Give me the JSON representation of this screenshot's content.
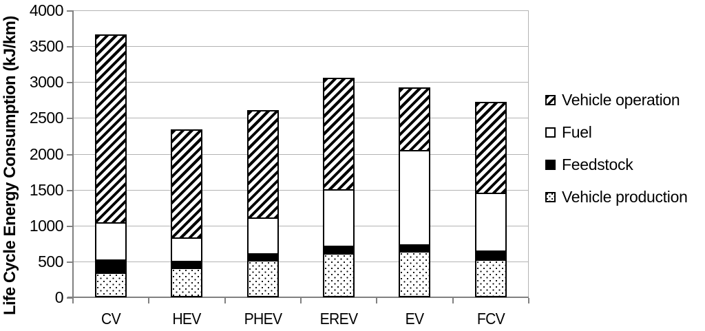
{
  "chart_data": {
    "type": "bar",
    "stacked": true,
    "title": "",
    "xlabel": "",
    "ylabel": "Life Cycle Energy Consumption (kJ/km)",
    "ylim": [
      0,
      4000
    ],
    "ytick_step": 500,
    "ytick_labels": [
      "0",
      "500",
      "1000",
      "1500",
      "2000",
      "2500",
      "3000",
      "3500",
      "4000"
    ],
    "categories": [
      "CV",
      "HEV",
      "PHEV",
      "EREV",
      "EV",
      "FCV"
    ],
    "series": [
      {
        "name": "Vehicle production",
        "pattern": "dots",
        "values": [
          350,
          410,
          520,
          610,
          640,
          530
        ]
      },
      {
        "name": "Feedstock",
        "pattern": "black",
        "values": [
          180,
          100,
          95,
          110,
          100,
          120
        ]
      },
      {
        "name": "Fuel",
        "pattern": "white",
        "values": [
          520,
          330,
          495,
          790,
          1310,
          810
        ]
      },
      {
        "name": "Vehicle operation",
        "pattern": "hatch",
        "values": [
          2610,
          1500,
          1500,
          1550,
          880,
          1260
        ]
      }
    ],
    "stack_totals": [
      3660,
      2340,
      2610,
      3060,
      2930,
      2720
    ],
    "legend_position": "right",
    "legend": [
      {
        "label": "Vehicle operation",
        "pattern": "hatch",
        "swatch_icon": "diagonal-hatch-swatch-icon"
      },
      {
        "label": "Fuel",
        "pattern": "white",
        "swatch_icon": "white-swatch-icon"
      },
      {
        "label": "Feedstock",
        "pattern": "black",
        "swatch_icon": "black-swatch-icon"
      },
      {
        "label": "Vehicle production",
        "pattern": "dots",
        "swatch_icon": "dotted-swatch-icon"
      }
    ],
    "grid": true,
    "colors": {
      "bar_fill": "#000000",
      "bar_background": "#ffffff",
      "axis": "#808080",
      "gridline": "#b3b3b3",
      "text": "#000000",
      "background": "#ffffff"
    }
  }
}
